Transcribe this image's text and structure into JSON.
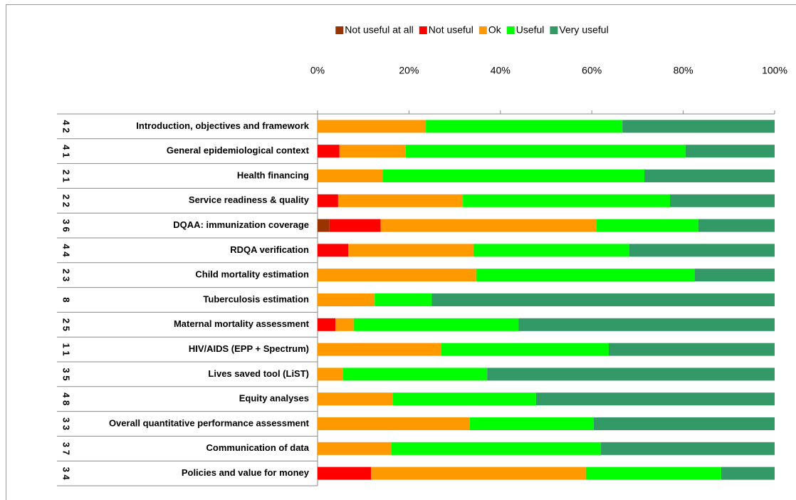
{
  "chart_data": {
    "type": "stacked_bar_horizontal",
    "categories": [
      "Introduction, objectives and framework",
      "General epidemiological context",
      "Health financing",
      "Service readiness & quality",
      "DQAA: immunization coverage",
      "RDQA verification",
      "Child mortality estimation",
      "Tuberculosis estimation",
      "Maternal mortality assessment",
      "HIV/AIDS (EPP + Spectrum)",
      "Lives saved tool (LiST)",
      "Equity analyses",
      "Overall quantitative performance assessment",
      "Communication of data",
      "Policies and value for money"
    ],
    "row_codes": [
      "4 2",
      "4 1",
      "2 1",
      "2 2",
      "3 6",
      "4 4",
      "2 3",
      "8",
      "2 5",
      "1 1",
      "3 5",
      "4 8",
      "3 3",
      "3 7",
      "3 4"
    ],
    "series": [
      {
        "name": "Not useful at all",
        "color": "#993300",
        "values": [
          0,
          0,
          0,
          0,
          2.6,
          0,
          0,
          0,
          0,
          0,
          0,
          0,
          0,
          0,
          0
        ]
      },
      {
        "name": "Not useful",
        "color": "#ff0000",
        "values": [
          0,
          4.8,
          0,
          4.5,
          11.2,
          6.7,
          0,
          0,
          3.9,
          0,
          0,
          0,
          0,
          0,
          11.7
        ]
      },
      {
        "name": "Ok",
        "color": "#ff9900",
        "values": [
          23.7,
          14.5,
          14.2,
          27.3,
          47.2,
          27.4,
          34.7,
          12.5,
          4,
          27.1,
          5.6,
          16.5,
          33.3,
          16.2,
          47
        ]
      },
      {
        "name": "Useful",
        "color": "#00ff00",
        "values": [
          43,
          61.2,
          57.3,
          45.3,
          22.3,
          34.1,
          47.8,
          12.5,
          36.1,
          36.6,
          31.5,
          31.3,
          27.1,
          45.8,
          29.6
        ]
      },
      {
        "name": "Very useful",
        "color": "#339966",
        "values": [
          33.3,
          19.5,
          28.5,
          22.9,
          16.7,
          31.8,
          17.5,
          75,
          56,
          36.3,
          62.9,
          52.2,
          39.6,
          38,
          11.7
        ]
      }
    ],
    "xlim": [
      0,
      100
    ],
    "xticks": [
      {
        "value": 0,
        "label": "0%"
      },
      {
        "value": 20,
        "label": "20%"
      },
      {
        "value": 40,
        "label": "40%"
      },
      {
        "value": 60,
        "label": "60%"
      },
      {
        "value": 80,
        "label": "80%"
      },
      {
        "value": 100,
        "label": "100%"
      }
    ],
    "legend": "top"
  }
}
